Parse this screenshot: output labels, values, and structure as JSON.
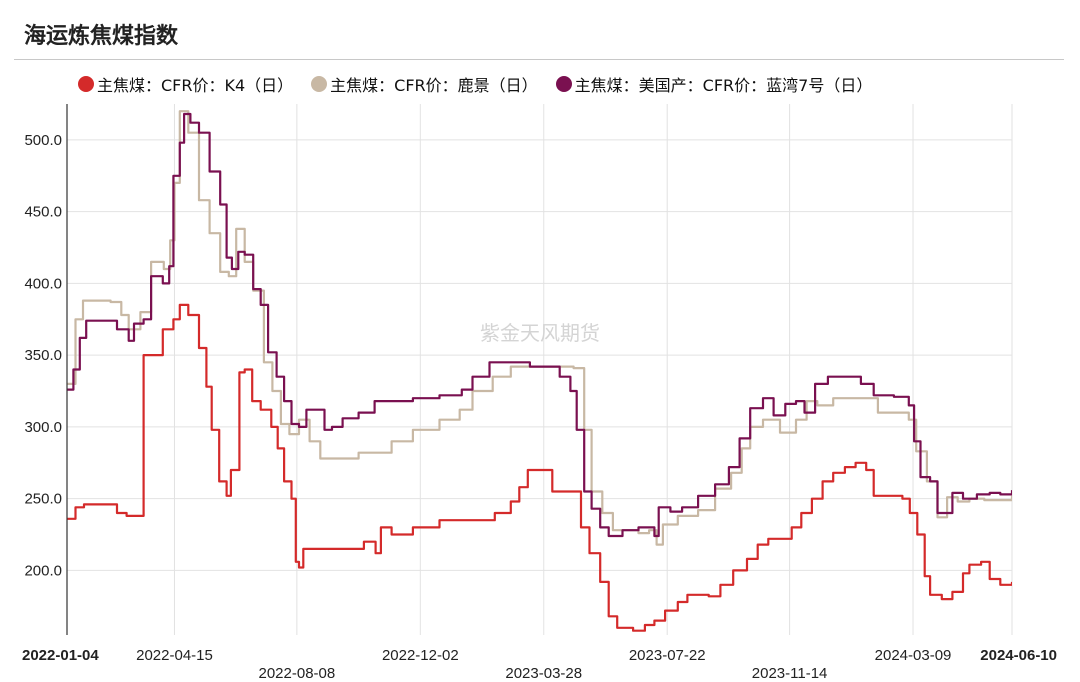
{
  "page": {
    "title": "海运炼焦煤指数"
  },
  "chart_data": {
    "type": "line",
    "ylim": [
      155,
      525
    ],
    "y_ticks": [
      "200.0",
      "250.0",
      "300.0",
      "350.0",
      "400.0",
      "450.0",
      "500.0"
    ],
    "y_tick_values": [
      200,
      250,
      300,
      350,
      400,
      450,
      500
    ],
    "x_domain": [
      "2022-01-04",
      "2024-06-10"
    ],
    "x_ticks": [
      {
        "date": "2022-01-04",
        "label": "2022-01-04",
        "row": 0,
        "bold": true
      },
      {
        "date": "2022-04-15",
        "label": "2022-04-15",
        "row": 0,
        "bold": false
      },
      {
        "date": "2022-08-08",
        "label": "2022-08-08",
        "row": 1,
        "bold": false
      },
      {
        "date": "2022-12-02",
        "label": "2022-12-02",
        "row": 0,
        "bold": false
      },
      {
        "date": "2023-03-28",
        "label": "2023-03-28",
        "row": 1,
        "bold": false
      },
      {
        "date": "2023-07-22",
        "label": "2023-07-22",
        "row": 0,
        "bold": false
      },
      {
        "date": "2023-11-14",
        "label": "2023-11-14",
        "row": 1,
        "bold": false
      },
      {
        "date": "2024-03-09",
        "label": "2024-03-09",
        "row": 0,
        "bold": false
      },
      {
        "date": "2024-06-10",
        "label": "2024-06-10",
        "row": 0,
        "bold": true
      }
    ],
    "watermark": "紫金天风期货",
    "grid": true,
    "legend_position": "top",
    "series": [
      {
        "name": "主焦煤：CFR价：鹿景（日）",
        "color": "#c8b8a4",
        "points": [
          [
            "2022-01-04",
            330
          ],
          [
            "2022-01-12",
            375
          ],
          [
            "2022-01-19",
            388
          ],
          [
            "2022-02-14",
            387
          ],
          [
            "2022-02-24",
            378
          ],
          [
            "2022-03-03",
            368
          ],
          [
            "2022-03-14",
            380
          ],
          [
            "2022-03-24",
            415
          ],
          [
            "2022-04-05",
            410
          ],
          [
            "2022-04-11",
            430
          ],
          [
            "2022-04-15",
            470
          ],
          [
            "2022-04-20",
            520
          ],
          [
            "2022-04-28",
            505
          ],
          [
            "2022-05-08",
            458
          ],
          [
            "2022-05-18",
            435
          ],
          [
            "2022-05-28",
            408
          ],
          [
            "2022-06-05",
            405
          ],
          [
            "2022-06-12",
            438
          ],
          [
            "2022-06-20",
            415
          ],
          [
            "2022-06-28",
            395
          ],
          [
            "2022-07-08",
            345
          ],
          [
            "2022-07-16",
            325
          ],
          [
            "2022-07-24",
            302
          ],
          [
            "2022-08-01",
            295
          ],
          [
            "2022-08-10",
            305
          ],
          [
            "2022-08-20",
            290
          ],
          [
            "2022-08-30",
            278
          ],
          [
            "2022-09-15",
            278
          ],
          [
            "2022-10-05",
            282
          ],
          [
            "2022-11-05",
            290
          ],
          [
            "2022-11-25",
            298
          ],
          [
            "2022-12-20",
            305
          ],
          [
            "2023-01-08",
            312
          ],
          [
            "2023-01-20",
            325
          ],
          [
            "2023-02-08",
            335
          ],
          [
            "2023-02-25",
            342
          ],
          [
            "2023-03-12",
            342
          ],
          [
            "2023-04-01",
            342
          ],
          [
            "2023-04-25",
            341
          ],
          [
            "2023-05-05",
            298
          ],
          [
            "2023-05-12",
            255
          ],
          [
            "2023-05-22",
            240
          ],
          [
            "2023-06-01",
            228
          ],
          [
            "2023-06-12",
            228
          ],
          [
            "2023-06-25",
            226
          ],
          [
            "2023-07-05",
            228
          ],
          [
            "2023-07-12",
            218
          ],
          [
            "2023-07-18",
            232
          ],
          [
            "2023-08-01",
            238
          ],
          [
            "2023-08-20",
            242
          ],
          [
            "2023-09-05",
            257
          ],
          [
            "2023-09-20",
            268
          ],
          [
            "2023-09-30",
            285
          ],
          [
            "2023-10-08",
            300
          ],
          [
            "2023-10-20",
            305
          ],
          [
            "2023-11-05",
            296
          ],
          [
            "2023-11-20",
            305
          ],
          [
            "2023-11-30",
            318
          ],
          [
            "2023-12-10",
            315
          ],
          [
            "2023-12-25",
            320
          ],
          [
            "2024-01-20",
            320
          ],
          [
            "2024-02-05",
            310
          ],
          [
            "2024-02-25",
            310
          ],
          [
            "2024-03-05",
            305
          ],
          [
            "2024-03-12",
            283
          ],
          [
            "2024-03-22",
            262
          ],
          [
            "2024-04-01",
            237
          ],
          [
            "2024-04-10",
            251
          ],
          [
            "2024-04-20",
            248
          ],
          [
            "2024-05-01",
            250
          ],
          [
            "2024-05-15",
            249
          ],
          [
            "2024-06-10",
            252
          ]
        ]
      },
      {
        "name": "主焦煤：CFR价：K4（日）",
        "color": "#d42a2a",
        "points": [
          [
            "2022-01-04",
            236
          ],
          [
            "2022-01-12",
            244
          ],
          [
            "2022-01-20",
            246
          ],
          [
            "2022-02-10",
            246
          ],
          [
            "2022-02-20",
            240
          ],
          [
            "2022-03-01",
            238
          ],
          [
            "2022-03-12",
            238
          ],
          [
            "2022-03-17",
            350
          ],
          [
            "2022-03-30",
            350
          ],
          [
            "2022-04-04",
            368
          ],
          [
            "2022-04-14",
            375
          ],
          [
            "2022-04-20",
            385
          ],
          [
            "2022-04-28",
            378
          ],
          [
            "2022-05-08",
            355
          ],
          [
            "2022-05-15",
            328
          ],
          [
            "2022-05-20",
            298
          ],
          [
            "2022-05-27",
            262
          ],
          [
            "2022-06-03",
            252
          ],
          [
            "2022-06-07",
            270
          ],
          [
            "2022-06-15",
            338
          ],
          [
            "2022-06-20",
            340
          ],
          [
            "2022-06-27",
            318
          ],
          [
            "2022-07-05",
            312
          ],
          [
            "2022-07-15",
            300
          ],
          [
            "2022-07-21",
            285
          ],
          [
            "2022-07-27",
            262
          ],
          [
            "2022-08-03",
            250
          ],
          [
            "2022-08-07",
            206
          ],
          [
            "2022-08-10",
            202
          ],
          [
            "2022-08-14",
            215
          ],
          [
            "2022-09-30",
            215
          ],
          [
            "2022-10-10",
            220
          ],
          [
            "2022-10-17",
            220
          ],
          [
            "2022-10-21",
            212
          ],
          [
            "2022-10-26",
            230
          ],
          [
            "2022-11-05",
            225
          ],
          [
            "2022-11-25",
            230
          ],
          [
            "2022-12-20",
            235
          ],
          [
            "2023-01-20",
            235
          ],
          [
            "2023-02-10",
            240
          ],
          [
            "2023-02-25",
            248
          ],
          [
            "2023-03-05",
            258
          ],
          [
            "2023-03-13",
            270
          ],
          [
            "2023-03-28",
            270
          ],
          [
            "2023-04-05",
            255
          ],
          [
            "2023-04-25",
            255
          ],
          [
            "2023-05-02",
            230
          ],
          [
            "2023-05-10",
            212
          ],
          [
            "2023-05-20",
            192
          ],
          [
            "2023-05-28",
            168
          ],
          [
            "2023-06-05",
            160
          ],
          [
            "2023-06-20",
            158
          ],
          [
            "2023-07-01",
            162
          ],
          [
            "2023-07-10",
            165
          ],
          [
            "2023-07-20",
            172
          ],
          [
            "2023-08-01",
            178
          ],
          [
            "2023-08-10",
            183
          ],
          [
            "2023-08-30",
            182
          ],
          [
            "2023-09-10",
            190
          ],
          [
            "2023-09-22",
            200
          ],
          [
            "2023-10-05",
            208
          ],
          [
            "2023-10-15",
            218
          ],
          [
            "2023-10-25",
            222
          ],
          [
            "2023-11-08",
            222
          ],
          [
            "2023-11-16",
            230
          ],
          [
            "2023-11-25",
            240
          ],
          [
            "2023-12-05",
            250
          ],
          [
            "2023-12-15",
            262
          ],
          [
            "2023-12-25",
            268
          ],
          [
            "2024-01-05",
            272
          ],
          [
            "2024-01-15",
            275
          ],
          [
            "2024-01-25",
            270
          ],
          [
            "2024-02-01",
            252
          ],
          [
            "2024-02-20",
            252
          ],
          [
            "2024-02-28",
            250
          ],
          [
            "2024-03-06",
            240
          ],
          [
            "2024-03-13",
            225
          ],
          [
            "2024-03-20",
            196
          ],
          [
            "2024-03-25",
            183
          ],
          [
            "2024-04-05",
            180
          ],
          [
            "2024-04-15",
            185
          ],
          [
            "2024-04-25",
            198
          ],
          [
            "2024-05-01",
            204
          ],
          [
            "2024-05-12",
            206
          ],
          [
            "2024-05-20",
            194
          ],
          [
            "2024-05-30",
            190
          ],
          [
            "2024-06-10",
            192
          ]
        ]
      },
      {
        "name": "主焦煤：美国产：CFR价：蓝湾7号（日）",
        "color": "#7a1050",
        "points": [
          [
            "2022-01-04",
            326
          ],
          [
            "2022-01-10",
            340
          ],
          [
            "2022-01-16",
            362
          ],
          [
            "2022-01-22",
            374
          ],
          [
            "2022-02-10",
            374
          ],
          [
            "2022-02-20",
            368
          ],
          [
            "2022-03-03",
            360
          ],
          [
            "2022-03-08",
            372
          ],
          [
            "2022-03-17",
            375
          ],
          [
            "2022-03-24",
            405
          ],
          [
            "2022-04-04",
            400
          ],
          [
            "2022-04-10",
            412
          ],
          [
            "2022-04-14",
            475
          ],
          [
            "2022-04-20",
            498
          ],
          [
            "2022-04-24",
            518
          ],
          [
            "2022-04-30",
            512
          ],
          [
            "2022-05-08",
            505
          ],
          [
            "2022-05-18",
            478
          ],
          [
            "2022-05-28",
            455
          ],
          [
            "2022-06-03",
            418
          ],
          [
            "2022-06-08",
            410
          ],
          [
            "2022-06-14",
            422
          ],
          [
            "2022-06-20",
            420
          ],
          [
            "2022-06-28",
            396
          ],
          [
            "2022-07-05",
            385
          ],
          [
            "2022-07-12",
            352
          ],
          [
            "2022-07-20",
            335
          ],
          [
            "2022-07-27",
            318
          ],
          [
            "2022-08-03",
            302
          ],
          [
            "2022-08-10",
            300
          ],
          [
            "2022-08-17",
            312
          ],
          [
            "2022-08-27",
            312
          ],
          [
            "2022-09-03",
            298
          ],
          [
            "2022-09-10",
            300
          ],
          [
            "2022-09-20",
            306
          ],
          [
            "2022-10-05",
            310
          ],
          [
            "2022-10-20",
            318
          ],
          [
            "2022-11-05",
            318
          ],
          [
            "2022-11-25",
            320
          ],
          [
            "2022-12-20",
            322
          ],
          [
            "2023-01-10",
            326
          ],
          [
            "2023-01-20",
            335
          ],
          [
            "2023-02-05",
            345
          ],
          [
            "2023-02-25",
            345
          ],
          [
            "2023-03-15",
            342
          ],
          [
            "2023-03-28",
            342
          ],
          [
            "2023-04-12",
            335
          ],
          [
            "2023-04-22",
            325
          ],
          [
            "2023-04-28",
            298
          ],
          [
            "2023-05-05",
            255
          ],
          [
            "2023-05-12",
            243
          ],
          [
            "2023-05-20",
            230
          ],
          [
            "2023-05-28",
            224
          ],
          [
            "2023-06-10",
            228
          ],
          [
            "2023-06-25",
            230
          ],
          [
            "2023-07-05",
            230
          ],
          [
            "2023-07-10",
            224
          ],
          [
            "2023-07-14",
            244
          ],
          [
            "2023-07-25",
            241
          ],
          [
            "2023-08-05",
            244
          ],
          [
            "2023-08-20",
            252
          ],
          [
            "2023-09-05",
            260
          ],
          [
            "2023-09-18",
            272
          ],
          [
            "2023-09-28",
            292
          ],
          [
            "2023-10-08",
            313
          ],
          [
            "2023-10-20",
            320
          ],
          [
            "2023-10-30",
            308
          ],
          [
            "2023-11-10",
            316
          ],
          [
            "2023-11-20",
            318
          ],
          [
            "2023-11-28",
            310
          ],
          [
            "2023-12-08",
            330
          ],
          [
            "2023-12-20",
            335
          ],
          [
            "2024-01-10",
            335
          ],
          [
            "2024-01-20",
            330
          ],
          [
            "2024-02-01",
            322
          ],
          [
            "2024-02-20",
            321
          ],
          [
            "2024-03-05",
            315
          ],
          [
            "2024-03-10",
            290
          ],
          [
            "2024-03-16",
            265
          ],
          [
            "2024-03-25",
            262
          ],
          [
            "2024-04-01",
            240
          ],
          [
            "2024-04-08",
            240
          ],
          [
            "2024-04-15",
            254
          ],
          [
            "2024-04-25",
            250
          ],
          [
            "2024-05-08",
            253
          ],
          [
            "2024-05-20",
            254
          ],
          [
            "2024-05-30",
            253
          ],
          [
            "2024-06-10",
            256
          ]
        ]
      }
    ]
  }
}
